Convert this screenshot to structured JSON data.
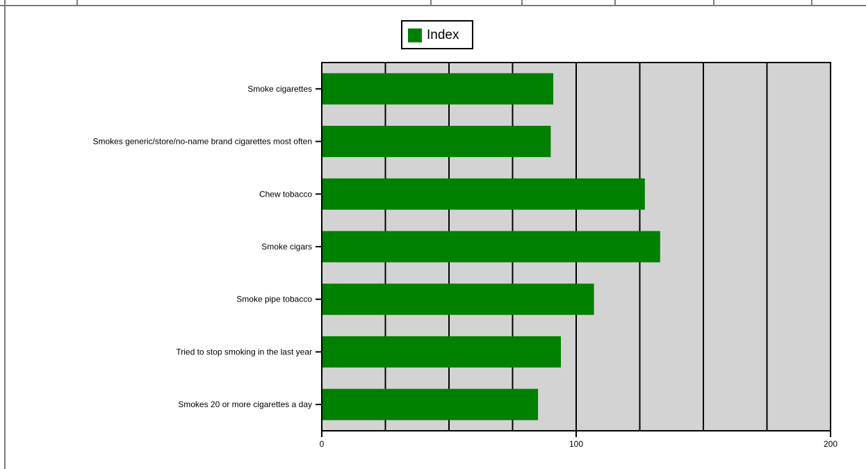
{
  "chart_data": {
    "type": "bar",
    "orientation": "horizontal",
    "categories": [
      "Smoke cigarettes",
      "Smokes generic/store/no-name brand cigarettes most often",
      "Chew tobacco",
      "Smoke cigars",
      "Smoke pipe tobacco",
      "Tried to stop smoking in the last year",
      "Smokes 20 or more cigarettes a day"
    ],
    "series": [
      {
        "name": "Index",
        "values": [
          91,
          90,
          127,
          133,
          107,
          94,
          85
        ],
        "color": "#008000"
      }
    ],
    "xlim": [
      0,
      200
    ],
    "xticks": [
      0,
      100,
      200
    ],
    "grid_lines": [
      25,
      50,
      75,
      100,
      125,
      150,
      175
    ],
    "grid": true,
    "plot_background": "#d3d3d3",
    "legend_position": "top-center"
  }
}
